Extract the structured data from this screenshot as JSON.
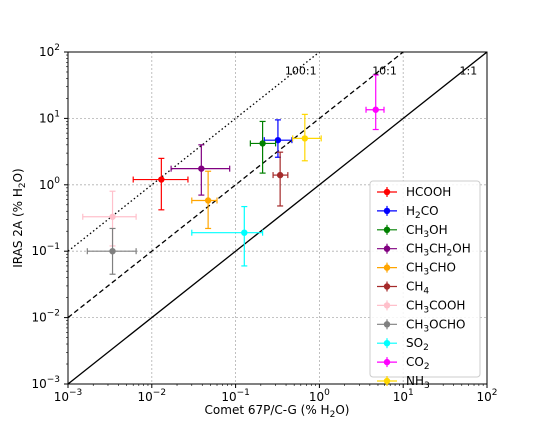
{
  "chart_data": {
    "type": "scatter",
    "x_scale": "log",
    "y_scale": "log",
    "xlim": [
      0.001,
      100
    ],
    "ylim": [
      0.001,
      100
    ],
    "xlabel": "Comet 67P/C-G (% H2O)",
    "ylabel": "IRAS 2A (% H2O)",
    "x_ticks": [
      "10^-3",
      "10^-2",
      "10^-1",
      "10^0",
      "10^1",
      "10^2"
    ],
    "y_ticks": [
      "10^-3",
      "10^-2",
      "10^-1",
      "10^0",
      "10^1",
      "10^2"
    ],
    "grid": true,
    "legend_position": "lower-right",
    "ratio_lines": [
      {
        "label": "100:1",
        "ratio": 100,
        "style": "dotted",
        "color": "#000000"
      },
      {
        "label": "10:1",
        "ratio": 10,
        "style": "dashed",
        "color": "#000000"
      },
      {
        "label": "1:1",
        "ratio": 1,
        "style": "solid",
        "color": "#000000"
      }
    ],
    "series": [
      {
        "name": "HCOOH",
        "color": "#ff0000",
        "x": 0.013,
        "xerr": [
          0.006,
          0.027
        ],
        "y": 1.2,
        "yerr": [
          0.42,
          2.5
        ]
      },
      {
        "name": "H2CO",
        "color": "#0000ff",
        "x": 0.32,
        "xerr": [
          0.22,
          0.47
        ],
        "y": 4.7,
        "yerr": [
          2.6,
          9.5
        ]
      },
      {
        "name": "CH3OH",
        "color": "#008000",
        "x": 0.21,
        "xerr": [
          0.15,
          0.3
        ],
        "y": 4.2,
        "yerr": [
          1.5,
          9.0
        ]
      },
      {
        "name": "CH3CH2OH",
        "color": "#800080",
        "x": 0.039,
        "xerr": [
          0.017,
          0.085
        ],
        "y": 1.75,
        "yerr": [
          0.7,
          4.0
        ]
      },
      {
        "name": "CH3CHO",
        "color": "#ffa500",
        "x": 0.047,
        "xerr": [
          0.03,
          0.06
        ],
        "y": 0.58,
        "yerr": [
          0.22,
          1.6
        ]
      },
      {
        "name": "CH4",
        "color": "#a52a2a",
        "x": 0.34,
        "xerr": [
          0.28,
          0.42
        ],
        "y": 1.4,
        "yerr": [
          0.48,
          3.1
        ]
      },
      {
        "name": "CH3COOH",
        "color": "#ffc0cb",
        "x": 0.0034,
        "xerr": [
          0.0015,
          0.0065
        ],
        "y": 0.33,
        "yerr": [
          0.12,
          0.8
        ]
      },
      {
        "name": "CH3OCHO",
        "color": "#808080",
        "x": 0.0034,
        "xerr": [
          0.0017,
          0.0065
        ],
        "y": 0.1,
        "yerr": [
          0.045,
          0.22
        ]
      },
      {
        "name": "SO2",
        "color": "#00ffff",
        "x": 0.127,
        "xerr": [
          0.03,
          0.21
        ],
        "y": 0.19,
        "yerr": [
          0.06,
          0.47
        ]
      },
      {
        "name": "CO2",
        "color": "#ff00ff",
        "x": 4.7,
        "xerr": [
          3.6,
          5.9
        ],
        "y": 13.5,
        "yerr": [
          6.8,
          45
        ]
      },
      {
        "name": "NH3",
        "color": "#ffd700",
        "x": 0.67,
        "xerr": [
          0.48,
          1.05
        ],
        "y": 5.0,
        "yerr": [
          2.3,
          11.5
        ]
      }
    ]
  },
  "legend_labels": [
    {
      "pre": "HCOOH",
      "parts": []
    },
    {
      "pre": "H",
      "parts": [
        [
          "2",
          true
        ],
        [
          "CO",
          false
        ]
      ]
    },
    {
      "pre": "CH",
      "parts": [
        [
          "3",
          true
        ],
        [
          "OH",
          false
        ]
      ]
    },
    {
      "pre": "CH",
      "parts": [
        [
          "3",
          true
        ],
        [
          "CH",
          false
        ],
        [
          "2",
          true
        ],
        [
          "OH",
          false
        ]
      ]
    },
    {
      "pre": "CH",
      "parts": [
        [
          "3",
          true
        ],
        [
          "CHO",
          false
        ]
      ]
    },
    {
      "pre": "CH",
      "parts": [
        [
          "4",
          true
        ]
      ]
    },
    {
      "pre": "CH",
      "parts": [
        [
          "3",
          true
        ],
        [
          "COOH",
          false
        ]
      ]
    },
    {
      "pre": "CH",
      "parts": [
        [
          "3",
          true
        ],
        [
          "OCHO",
          false
        ]
      ]
    },
    {
      "pre": "SO",
      "parts": [
        [
          "2",
          true
        ]
      ]
    },
    {
      "pre": "CO",
      "parts": [
        [
          "2",
          true
        ]
      ]
    },
    {
      "pre": "NH",
      "parts": [
        [
          "3",
          true
        ]
      ]
    }
  ]
}
